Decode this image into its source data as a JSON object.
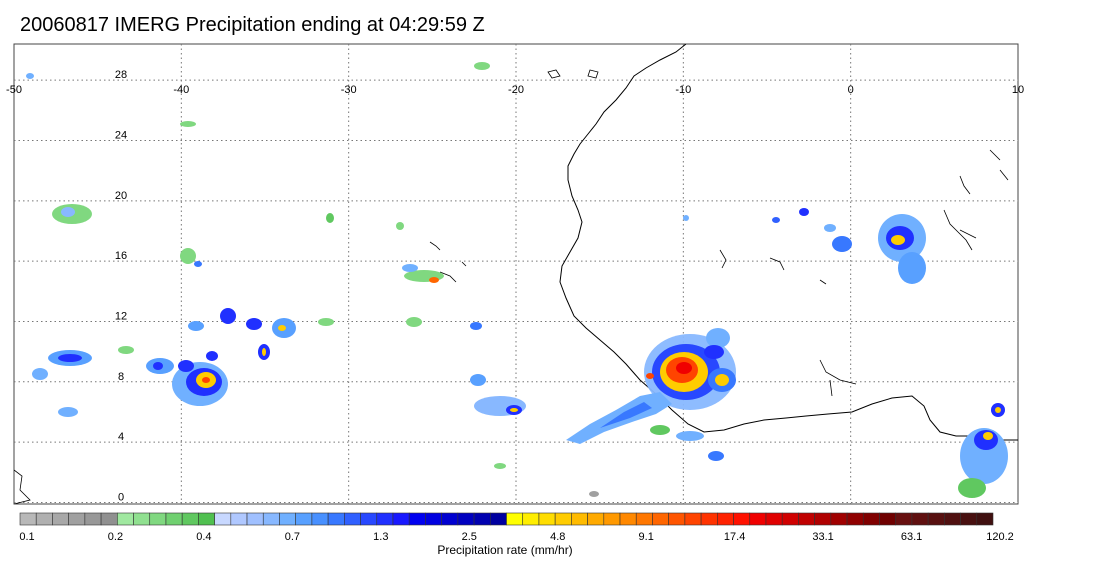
{
  "title": "20060817 IMERG Precipitation ending at 04:29:59 Z",
  "map": {
    "lon_ticks": [
      "-50",
      "-40",
      "-30",
      "-20",
      "-10",
      "0",
      "10"
    ],
    "lat_ticks": [
      "28",
      "24",
      "20",
      "16",
      "12",
      "8",
      "4",
      "0"
    ],
    "lon_range": [
      -50,
      10
    ],
    "lat_range": [
      -0.5,
      30
    ],
    "grid": "dotted"
  },
  "colorbar": {
    "label": "Precipitation rate (mm/hr)",
    "tick_labels": [
      "0.1",
      "0.2",
      "0.4",
      "0.7",
      "1.3",
      "2.5",
      "4.8",
      "9.1",
      "17.4",
      "33.1",
      "63.1",
      "120.2"
    ],
    "colors": [
      "#b8b8b8",
      "#b0b0b0",
      "#a8a8a8",
      "#a0a0a0",
      "#989898",
      "#909090",
      "#a0e8a0",
      "#90e090",
      "#80d880",
      "#70d070",
      "#60c860",
      "#50c050",
      "#c8d8ff",
      "#b0c8ff",
      "#a0c0ff",
      "#88b8ff",
      "#70b0ff",
      "#58a0ff",
      "#4890ff",
      "#3878ff",
      "#3060ff",
      "#2848ff",
      "#2030ff",
      "#1818ff",
      "#0000f0",
      "#0000e0",
      "#0000d0",
      "#0000c0",
      "#0000b0",
      "#0000a0",
      "#ffff00",
      "#ffee00",
      "#ffdd00",
      "#ffcc00",
      "#ffbb00",
      "#ffaa00",
      "#ff9900",
      "#ff8800",
      "#ff7700",
      "#ff6600",
      "#ff5500",
      "#ff4400",
      "#ff3300",
      "#ff2200",
      "#ff1100",
      "#f00000",
      "#e00000",
      "#d00000",
      "#c00000",
      "#b00000",
      "#a00000",
      "#900000",
      "#800000",
      "#700000",
      "#681010",
      "#601010",
      "#581010",
      "#501010",
      "#481010",
      "#401010"
    ]
  }
}
